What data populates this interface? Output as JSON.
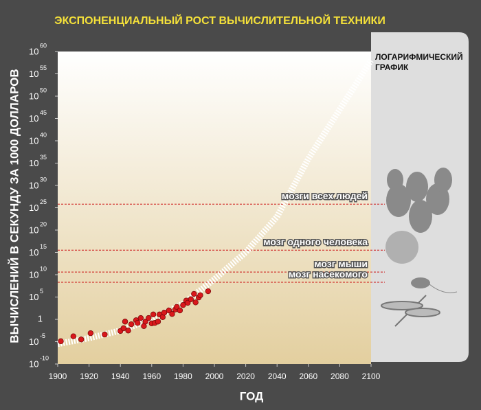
{
  "chart_data": {
    "type": "scatter",
    "title": "ЭКСПОНЕНЦИАЛЬНЫЙ РОСТ ВЫЧИСЛИТЕЛЬНОЙ ТЕХНИКИ",
    "ylabel": "ВЫЧИСЛЕНИЙ В СЕКУНДУ ЗА 1000 ДОЛЛАРОВ",
    "xlabel": "ГОД",
    "side_label": [
      "ЛОГАРИФМИЧЕСКИЙ",
      "ГРАФИК"
    ],
    "x": [
      1902,
      1910,
      1915,
      1921,
      1930,
      1940,
      1942,
      1943,
      1945,
      1947,
      1950,
      1951,
      1953,
      1955,
      1956,
      1958,
      1960,
      1961,
      1962,
      1964,
      1965,
      1967,
      1968,
      1971,
      1973,
      1975,
      1976,
      1978,
      1980,
      1982,
      1983,
      1985,
      1987,
      1988,
      1990,
      1991,
      1996
    ],
    "values": [
      -4.9,
      -3.8,
      -4.5,
      -3.1,
      -3.4,
      -2.6,
      -2,
      -0.5,
      -2.5,
      -1.1,
      -0.2,
      -0.8,
      0.3,
      -1.5,
      -0.5,
      0.3,
      -0.9,
      1.1,
      -0.8,
      -0.5,
      1.1,
      0.5,
      1.5,
      2,
      1.2,
      2.2,
      2.8,
      2,
      3.2,
      4.2,
      3.7,
      4.5,
      5.7,
      3.8,
      4.9,
      5.4,
      6.3
    ],
    "color": "#d9181c",
    "xlim": [
      1900,
      2100
    ],
    "ylim": [
      -10,
      60
    ],
    "xticks": [
      1900,
      1920,
      1940,
      1960,
      1980,
      2000,
      2020,
      2040,
      2060,
      2080,
      2100
    ],
    "yticks": [
      {
        "value": -10,
        "base": "10",
        "exponent": "-10"
      },
      {
        "value": -5,
        "base": "10",
        "exponent": "-5"
      },
      {
        "value": 0,
        "label": "1"
      },
      {
        "value": 5,
        "base": "10",
        "exponent": "5"
      },
      {
        "value": 10,
        "base": "10",
        "exponent": "10"
      },
      {
        "value": 15,
        "base": "10",
        "exponent": "15"
      },
      {
        "value": 20,
        "base": "10",
        "exponent": "20"
      },
      {
        "value": 25,
        "base": "10",
        "exponent": "25"
      },
      {
        "value": 30,
        "base": "10",
        "exponent": "30"
      },
      {
        "value": 35,
        "base": "10",
        "exponent": "35"
      },
      {
        "value": 40,
        "base": "10",
        "exponent": "40"
      },
      {
        "value": 45,
        "base": "10",
        "exponent": "45"
      },
      {
        "value": 50,
        "base": "10",
        "exponent": "50"
      },
      {
        "value": 55,
        "base": "10",
        "exponent": "55"
      },
      {
        "value": 60,
        "base": "10",
        "exponent": "60"
      }
    ],
    "trend": {
      "x": [
        1900,
        1920,
        1940,
        1960,
        1980,
        2000,
        2020,
        2040,
        2060,
        2080,
        2100
      ],
      "values": [
        -5.5,
        -4.2,
        -2.5,
        0,
        3.5,
        9,
        15,
        23,
        36,
        47,
        58
      ],
      "color": "#ffffff"
    },
    "annotations": [
      {
        "label": "мозги всех людей",
        "value": 25.8,
        "color": "#cc1111"
      },
      {
        "label": "мозг одного человека",
        "value": 15.5,
        "color": "#cc1111"
      },
      {
        "label": "мозг мыши",
        "value": 10.6,
        "color": "#cc1111"
      },
      {
        "label": "мозг насекомого",
        "value": 8.3,
        "color": "#cc1111"
      }
    ]
  }
}
